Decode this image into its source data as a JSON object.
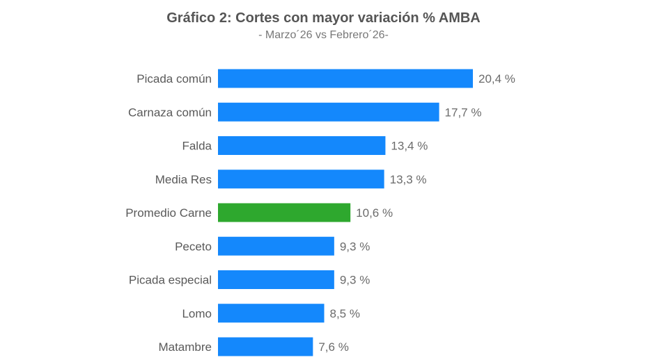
{
  "chart_data": {
    "type": "bar",
    "orientation": "horizontal",
    "title": "Gráfico 2: Cortes con mayor variación % AMBA",
    "subtitle": "- Marzo´26 vs Febrero´26-",
    "xlabel": "",
    "ylabel": "",
    "categories": [
      "Picada común",
      "Carnaza común",
      "Falda",
      "Media Res",
      "Promedio Carne",
      "Peceto",
      "Picada especial",
      "Lomo",
      "Matambre"
    ],
    "values": [
      20.4,
      17.7,
      13.4,
      13.3,
      10.6,
      9.3,
      9.3,
      8.5,
      7.6
    ],
    "labels": [
      "20,4 %",
      "17,7 %",
      "13,4 %",
      "13,3 %",
      "10,6 %",
      "9,3 %",
      "9,3 %",
      "8,5 %",
      "7,6 %"
    ],
    "highlight_category": "Promedio Carne",
    "colors": {
      "default": "#1488FC",
      "highlight": "#2EA82E"
    },
    "xlim": [
      0,
      20.4
    ],
    "grid": false,
    "legend": "none"
  }
}
